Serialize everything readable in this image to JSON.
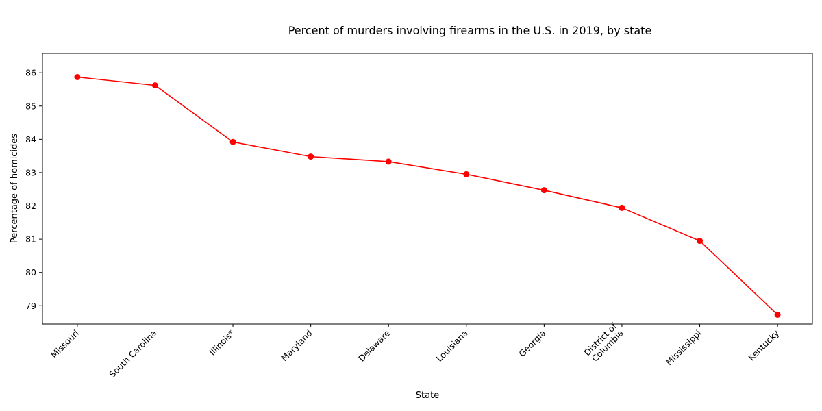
{
  "chart_data": {
    "type": "line",
    "title": "Percent of murders involving firearms in the U.S. in 2019, by state",
    "xlabel": "State",
    "ylabel": "Percentage of homicides",
    "categories": [
      "Missouri",
      "South Carolina",
      "Illinois*",
      "Maryland",
      "Delaware",
      "Louisiana",
      "Georgia",
      "District of Columbia",
      "Mississippi",
      "Kentucky"
    ],
    "values": [
      85.87,
      85.62,
      83.92,
      83.48,
      83.33,
      82.95,
      82.47,
      81.94,
      80.95,
      78.73
    ],
    "ylim": [
      78.45,
      86.58
    ],
    "yticks": [
      79,
      80,
      81,
      82,
      83,
      84,
      85,
      86
    ],
    "marker": "circle",
    "line_color": "#ff0000",
    "grid": false,
    "legend": false
  }
}
